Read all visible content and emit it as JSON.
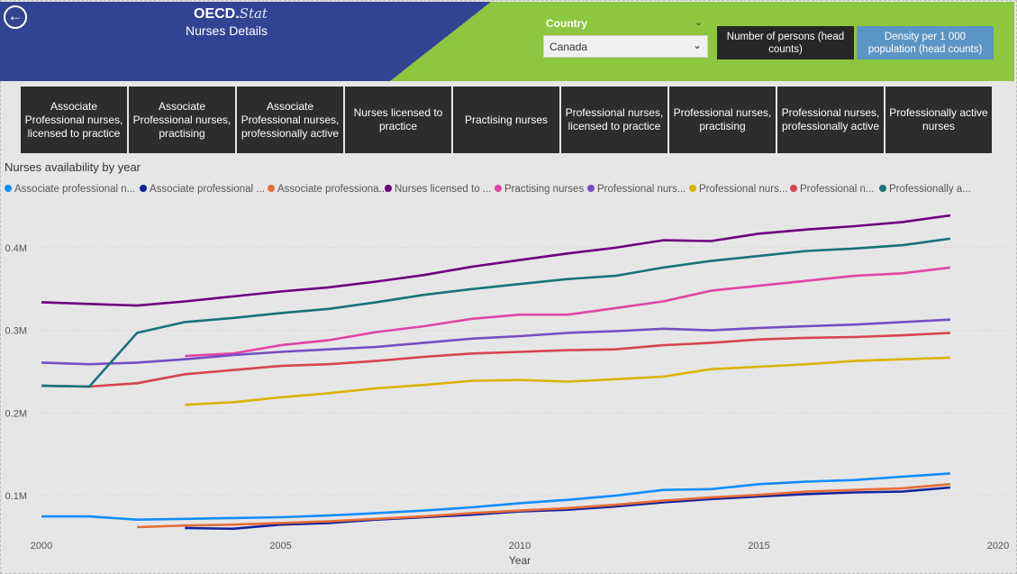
{
  "header": {
    "logo_main": "OECD.",
    "logo_stat": "Stat",
    "subtitle": "Nurses Details",
    "back_icon": "back-arrow-icon",
    "colors": {
      "blue": "#334393",
      "green": "#8dc63f"
    }
  },
  "country_filter": {
    "label": "Country",
    "selected": "Canada",
    "icon": "chevron-down-icon"
  },
  "measure_buttons": [
    {
      "label": "Number of persons (head counts)",
      "color": "#262626"
    },
    {
      "label": "Density per 1 000 population (head counts)",
      "color": "#5b95c6"
    }
  ],
  "category_buttons": [
    "Associate Professional nurses, licensed to practice",
    "Associate Professional nurses, practising",
    "Associate Professional nurses, professionally active",
    "Nurses licensed to practice",
    "Practising nurses",
    "Professional nurses, licensed to practice",
    "Professional nurses, practising",
    "Professional nurses, professionally active",
    "Professionally active nurses"
  ],
  "chart_data": {
    "type": "line",
    "title": "Nurses availability by year",
    "xlabel": "Year",
    "ylabel": "",
    "xlim": [
      2000,
      2020
    ],
    "ylim": [
      0.05,
      0.45
    ],
    "x_ticks": [
      "2000",
      "2005",
      "2010",
      "2015",
      "2020"
    ],
    "y_ticks": [
      {
        "value": 0.1,
        "label": "0.1M"
      },
      {
        "value": 0.2,
        "label": "0.2M"
      },
      {
        "value": 0.3,
        "label": "0.3M"
      },
      {
        "value": 0.4,
        "label": "0.4M"
      }
    ],
    "grid": "horizontal dotted",
    "legend": "top",
    "series": [
      {
        "name": "Associate professional n...",
        "color": "#118dff",
        "x": [
          2000,
          2001,
          2002,
          2003,
          2004,
          2005,
          2006,
          2007,
          2008,
          2009,
          2010,
          2011,
          2012,
          2013,
          2014,
          2015,
          2016,
          2017,
          2018,
          2019
        ],
        "values": [
          0.075,
          0.075,
          0.071,
          0.072,
          0.073,
          0.074,
          0.076,
          0.079,
          0.082,
          0.086,
          0.091,
          0.095,
          0.1,
          0.107,
          0.108,
          0.114,
          0.117,
          0.119,
          0.123,
          0.127
        ]
      },
      {
        "name": "Associate professional ...",
        "color": "#12239e",
        "x": [
          2003,
          2004,
          2005,
          2006,
          2007,
          2008,
          2009,
          2010,
          2011,
          2012,
          2013,
          2014,
          2015,
          2016,
          2017,
          2018,
          2019
        ],
        "values": [
          0.061,
          0.06,
          0.065,
          0.067,
          0.071,
          0.074,
          0.077,
          0.081,
          0.083,
          0.087,
          0.092,
          0.096,
          0.099,
          0.102,
          0.104,
          0.105,
          0.11
        ]
      },
      {
        "name": "Associate professiona...",
        "color": "#e66c37",
        "x": [
          2002,
          2003,
          2004,
          2005,
          2006,
          2007,
          2008,
          2009,
          2010,
          2011,
          2012,
          2013,
          2014,
          2015,
          2016,
          2017,
          2018,
          2019
        ],
        "values": [
          0.062,
          0.064,
          0.065,
          0.067,
          0.069,
          0.072,
          0.075,
          0.079,
          0.082,
          0.085,
          0.089,
          0.094,
          0.098,
          0.101,
          0.105,
          0.107,
          0.109,
          0.114
        ]
      },
      {
        "name": "Nurses licensed to ...",
        "color": "#6b007b",
        "x": [
          2000,
          2001,
          2002,
          2003,
          2004,
          2005,
          2006,
          2007,
          2008,
          2009,
          2010,
          2011,
          2012,
          2013,
          2014,
          2015,
          2016,
          2017,
          2018,
          2019
        ],
        "values": [
          0.334,
          0.332,
          0.33,
          0.335,
          0.341,
          0.347,
          0.352,
          0.359,
          0.367,
          0.377,
          0.385,
          0.393,
          0.4,
          0.409,
          0.408,
          0.417,
          0.422,
          0.426,
          0.431,
          0.439
        ]
      },
      {
        "name": "Practising nurses",
        "color": "#e044a7",
        "x": [
          2003,
          2004,
          2005,
          2006,
          2007,
          2008,
          2009,
          2010,
          2011,
          2012,
          2013,
          2014,
          2015,
          2016,
          2017,
          2018,
          2019
        ],
        "values": [
          0.269,
          0.272,
          0.282,
          0.288,
          0.298,
          0.305,
          0.314,
          0.319,
          0.319,
          0.327,
          0.335,
          0.348,
          0.354,
          0.36,
          0.366,
          0.369,
          0.376
        ]
      },
      {
        "name": "Professional nurs...",
        "color": "#744ec2",
        "x": [
          2000,
          2001,
          2002,
          2003,
          2004,
          2005,
          2006,
          2007,
          2008,
          2009,
          2010,
          2011,
          2012,
          2013,
          2014,
          2015,
          2016,
          2017,
          2018,
          2019
        ],
        "values": [
          0.261,
          0.259,
          0.261,
          0.265,
          0.27,
          0.274,
          0.277,
          0.28,
          0.285,
          0.29,
          0.293,
          0.297,
          0.299,
          0.302,
          0.3,
          0.303,
          0.305,
          0.307,
          0.31,
          0.313
        ]
      },
      {
        "name": "Professional nurs...",
        "color": "#d9b300",
        "x": [
          2003,
          2004,
          2005,
          2006,
          2007,
          2008,
          2009,
          2010,
          2011,
          2012,
          2013,
          2014,
          2015,
          2016,
          2017,
          2018,
          2019
        ],
        "values": [
          0.21,
          0.213,
          0.219,
          0.224,
          0.23,
          0.234,
          0.239,
          0.24,
          0.238,
          0.241,
          0.244,
          0.253,
          0.256,
          0.259,
          0.263,
          0.265,
          0.267
        ]
      },
      {
        "name": "Professional n...",
        "color": "#d64550",
        "x": [
          2000,
          2001,
          2002,
          2003,
          2004,
          2005,
          2006,
          2007,
          2008,
          2009,
          2010,
          2011,
          2012,
          2013,
          2014,
          2015,
          2016,
          2017,
          2018,
          2019
        ],
        "values": [
          0.233,
          0.232,
          0.236,
          0.247,
          0.252,
          0.257,
          0.259,
          0.263,
          0.268,
          0.272,
          0.274,
          0.276,
          0.277,
          0.282,
          0.285,
          0.289,
          0.291,
          0.292,
          0.294,
          0.297
        ]
      },
      {
        "name": "Professionally a...",
        "color": "#197278",
        "x": [
          2000,
          2001,
          2002,
          2003,
          2004,
          2005,
          2006,
          2007,
          2008,
          2009,
          2010,
          2011,
          2012,
          2013,
          2014,
          2015,
          2016,
          2017,
          2018,
          2019
        ],
        "values": [
          0.233,
          0.232,
          0.297,
          0.31,
          0.315,
          0.321,
          0.326,
          0.334,
          0.343,
          0.35,
          0.356,
          0.362,
          0.366,
          0.376,
          0.384,
          0.39,
          0.396,
          0.399,
          0.403,
          0.411
        ]
      }
    ]
  }
}
